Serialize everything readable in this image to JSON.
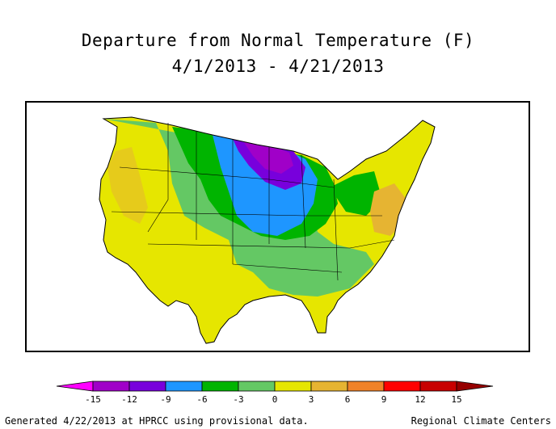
{
  "title_line1": "Departure from Normal Temperature (F)",
  "title_line2": "4/1/2013 - 4/21/2013",
  "footer_left": "Generated 4/22/2013 at HPRCC using provisional data.",
  "footer_right": "Regional Climate Centers",
  "legend": {
    "ticks": [
      "-15",
      "-12",
      "-9",
      "-6",
      "-3",
      "0",
      "3",
      "6",
      "9",
      "12",
      "15"
    ],
    "colors": [
      "#ff00ff",
      "#a000c8",
      "#7800dc",
      "#1e96ff",
      "#00b400",
      "#64c864",
      "#e6e600",
      "#e6b432",
      "#f08228",
      "#ff0000",
      "#c80000",
      "#960000"
    ]
  },
  "map": {
    "palette": {
      "magenta": "#ff00ff",
      "purple": "#a000c8",
      "violet": "#7800dc",
      "blue": "#1e96ff",
      "green": "#00b400",
      "lightgreen": "#64c864",
      "yellow": "#e6e600",
      "orange": "#e6b432"
    }
  }
}
